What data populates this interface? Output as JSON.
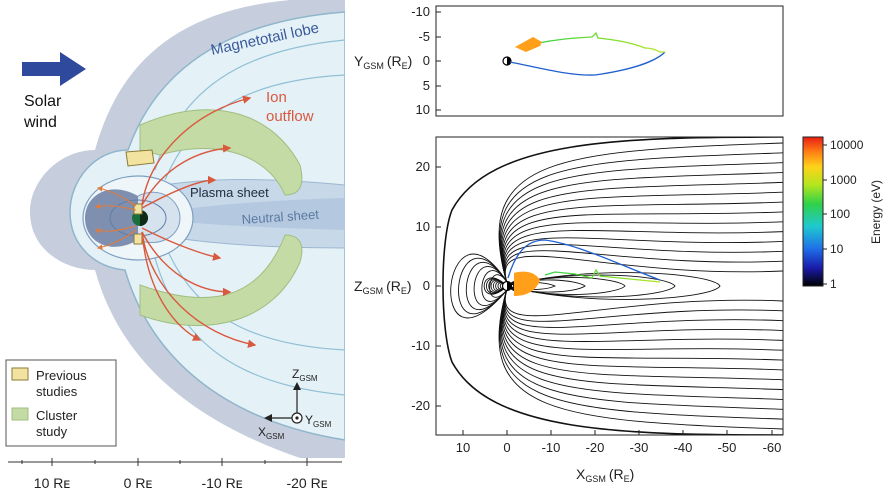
{
  "left_panel": {
    "solar_wind": [
      "Solar",
      "wind"
    ],
    "magnetotail_lobe": "Magnetotail lobe",
    "ion_outflow": [
      "Ion",
      "outflow"
    ],
    "plasma_sheet": "Plasma sheet",
    "neutral_sheet": "Neutral sheet",
    "legend": {
      "previous": [
        "Previous",
        "studies"
      ],
      "cluster": [
        "Cluster",
        "study"
      ]
    },
    "axes": {
      "z": "Z",
      "x": "X",
      "y": "Y",
      "sub": "GSM"
    },
    "scale_ticks": [
      "10 Rᴇ",
      "0 Rᴇ",
      "-10 Rᴇ",
      "-20 Rᴇ"
    ],
    "colors": {
      "solar_wind_arrow": "#2f4a9c",
      "magnetosheath": "#c6cddc",
      "lobe": "#e4f1f6",
      "plasma_sheet": "#c7d8e9",
      "cluster_region": "#c5dba5",
      "previous_region": "#f3e3a0",
      "ion_outflow": "#d9593f",
      "inner_field": "#7e8fb0"
    }
  },
  "top_plot": {
    "y_axis_label": "Y",
    "y_axis_sub": "GSM",
    "y_axis_unit_pre": "(R",
    "y_axis_unit_sub": "E",
    "y_axis_unit_post": ")",
    "y_ticks": [
      "-10",
      "-5",
      "0",
      "5",
      "10"
    ]
  },
  "bottom_plot": {
    "y_axis_label": "Z",
    "y_axis_sub": "GSM",
    "y_axis_unit_pre": "(R",
    "y_axis_unit_sub": "E",
    "y_axis_unit_post": ")",
    "x_axis_label": "X",
    "x_axis_sub": "GSM",
    "x_axis_unit_pre": "(R",
    "x_axis_unit_sub": "E",
    "x_axis_unit_post": ")",
    "y_ticks": [
      "20",
      "10",
      "0",
      "-10",
      "-20"
    ],
    "x_ticks": [
      "10",
      "0",
      "-10",
      "-20",
      "-30",
      "-40",
      "-50",
      "-60"
    ]
  },
  "colorbar": {
    "label": "Energy (eV)",
    "ticks": [
      "10000",
      "1000",
      "100",
      "10",
      "1"
    ],
    "colors": [
      "#000000",
      "#1a1aa8",
      "#1f6fe8",
      "#1fc9d0",
      "#2fd14a",
      "#b4e61e",
      "#ffd21a",
      "#ff7f14",
      "#e81e12"
    ]
  }
}
